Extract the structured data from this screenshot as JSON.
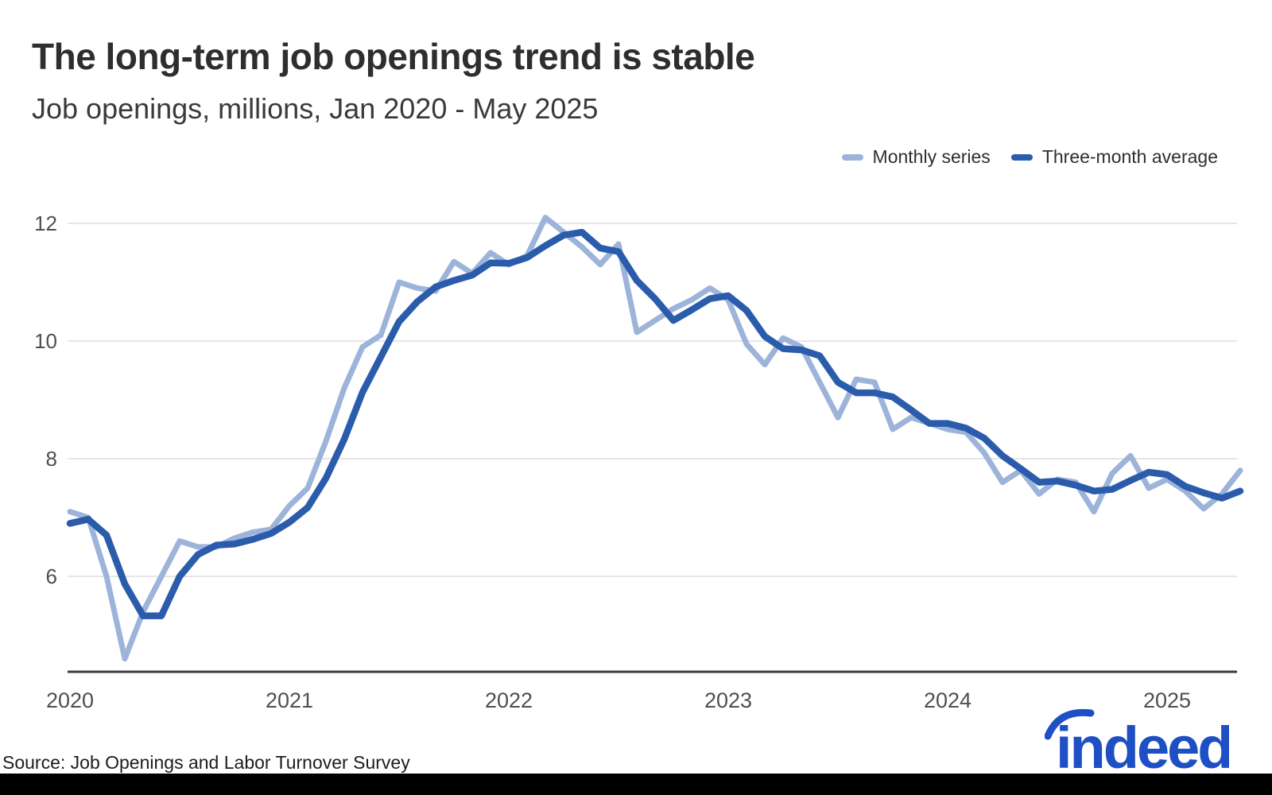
{
  "page": {
    "title": "The long-term job openings trend is stable",
    "subtitle": "Job openings, millions, Jan 2020 - May 2025",
    "source": "Source: Job Openings and Labor Turnover Survey",
    "logo_text": "indeed"
  },
  "legend": {
    "items": [
      {
        "label": "Monthly series",
        "color": "#9cb3da"
      },
      {
        "label": "Three-month average",
        "color": "#2b5cab"
      }
    ]
  },
  "colors": {
    "monthly_line": "#9cb3da",
    "average_line": "#2b5cab",
    "gridline": "#dedede",
    "axis_line": "#3b3b3b",
    "tick_text": "#4f4f4f",
    "logo_blue": "#1e4fc4",
    "bottom_bar": "#000000"
  },
  "chart_data": {
    "type": "line",
    "title": "The long-term job openings trend is stable",
    "xlabel": "",
    "ylabel": "Job openings, millions",
    "x_start": "2020-01",
    "x_end": "2025-05",
    "x_tick_labels": [
      "2020",
      "2021",
      "2022",
      "2023",
      "2024",
      "2025"
    ],
    "y_ticks": [
      6,
      8,
      10,
      12
    ],
    "ylim": [
      4.4,
      12.5
    ],
    "grid": "horizontal",
    "legend_position": "top-right",
    "months": [
      "2020-01",
      "2020-02",
      "2020-03",
      "2020-04",
      "2020-05",
      "2020-06",
      "2020-07",
      "2020-08",
      "2020-09",
      "2020-10",
      "2020-11",
      "2020-12",
      "2021-01",
      "2021-02",
      "2021-03",
      "2021-04",
      "2021-05",
      "2021-06",
      "2021-07",
      "2021-08",
      "2021-09",
      "2021-10",
      "2021-11",
      "2021-12",
      "2022-01",
      "2022-02",
      "2022-03",
      "2022-04",
      "2022-05",
      "2022-06",
      "2022-07",
      "2022-08",
      "2022-09",
      "2022-10",
      "2022-11",
      "2022-12",
      "2023-01",
      "2023-02",
      "2023-03",
      "2023-04",
      "2023-05",
      "2023-06",
      "2023-07",
      "2023-08",
      "2023-09",
      "2023-10",
      "2023-11",
      "2023-12",
      "2024-01",
      "2024-02",
      "2024-03",
      "2024-04",
      "2024-05",
      "2024-06",
      "2024-07",
      "2024-08",
      "2024-09",
      "2024-10",
      "2024-11",
      "2024-12",
      "2025-01",
      "2025-02",
      "2025-03",
      "2025-04",
      "2025-05"
    ],
    "series": [
      {
        "name": "Monthly series",
        "color": "#9cb3da",
        "values": [
          7.1,
          7.0,
          6.0,
          4.6,
          5.4,
          6.0,
          6.6,
          6.5,
          6.5,
          6.65,
          6.75,
          6.8,
          7.2,
          7.5,
          8.3,
          9.2,
          9.9,
          10.1,
          11.0,
          10.9,
          10.85,
          11.35,
          11.15,
          11.5,
          11.3,
          11.45,
          12.1,
          11.85,
          11.6,
          11.3,
          11.65,
          10.15,
          10.35,
          10.55,
          10.7,
          10.9,
          10.7,
          9.95,
          9.6,
          10.05,
          9.9,
          9.3,
          8.7,
          9.35,
          9.3,
          8.5,
          8.7,
          8.6,
          8.5,
          8.45,
          8.1,
          7.6,
          7.8,
          7.4,
          7.65,
          7.6,
          7.1,
          7.75,
          8.05,
          7.5,
          7.65,
          7.45,
          7.15,
          7.4,
          7.8
        ]
      },
      {
        "name": "Three-month average",
        "color": "#2b5cab",
        "values": [
          6.9,
          6.97,
          6.7,
          5.87,
          5.33,
          5.33,
          6.0,
          6.37,
          6.53,
          6.55,
          6.63,
          6.73,
          6.92,
          7.17,
          7.67,
          8.33,
          9.13,
          9.73,
          10.33,
          10.67,
          10.92,
          11.03,
          11.12,
          11.33,
          11.32,
          11.42,
          11.62,
          11.8,
          11.85,
          11.58,
          11.52,
          11.03,
          10.72,
          10.35,
          10.53,
          10.72,
          10.77,
          10.52,
          10.08,
          9.87,
          9.85,
          9.75,
          9.3,
          9.12,
          9.12,
          9.05,
          8.83,
          8.6,
          8.6,
          8.52,
          8.35,
          8.05,
          7.83,
          7.6,
          7.62,
          7.55,
          7.45,
          7.48,
          7.63,
          7.77,
          7.73,
          7.53,
          7.42,
          7.33,
          7.45
        ]
      }
    ]
  }
}
